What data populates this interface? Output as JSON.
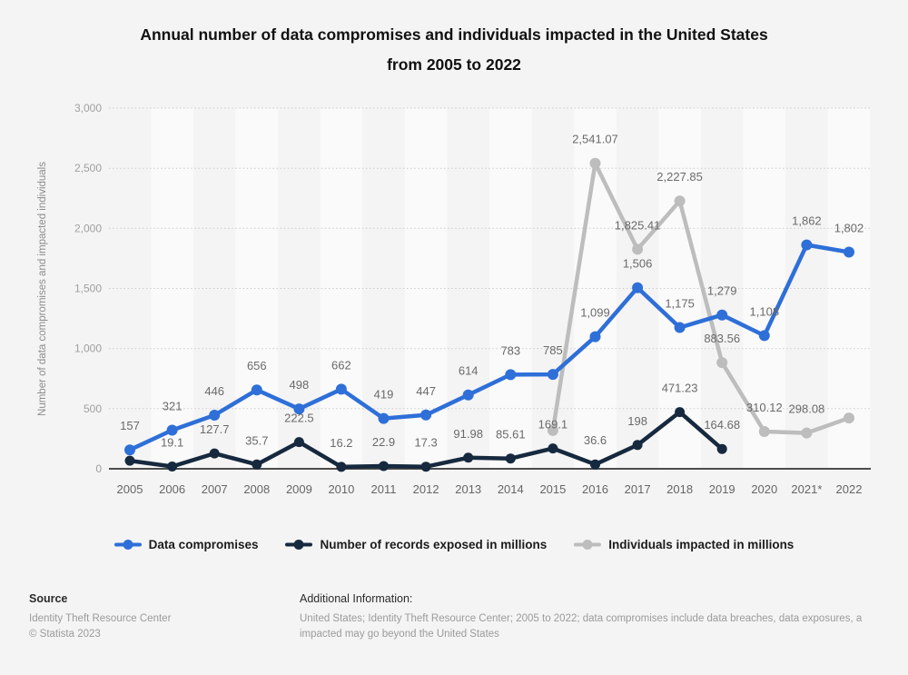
{
  "page": {
    "background": "#f4f4f5"
  },
  "header": {
    "title_line1": "Annual number of data compromises and individuals impacted in the United States",
    "title_line2": "from 2005 to 2022"
  },
  "chart_data": {
    "type": "line",
    "title": "Annual number of data compromises and individuals impacted in the United States from 2005 to 2022",
    "xlabel": "",
    "ylabel": "Number of data compromises and impacted individuals",
    "ylim": [
      0,
      3000
    ],
    "grid": "horizontal dotted gridlines every 500; alternating light vertical year bands",
    "legend_position": "bottom",
    "y_ticks": [
      {
        "v": 0,
        "label": "0"
      },
      {
        "v": 500,
        "label": "500"
      },
      {
        "v": 1000,
        "label": "1,000"
      },
      {
        "v": 1500,
        "label": "1,500"
      },
      {
        "v": 2000,
        "label": "2,000"
      },
      {
        "v": 2500,
        "label": "2,500"
      },
      {
        "v": 3000,
        "label": "3,000"
      }
    ],
    "categories": [
      "2005",
      "2006",
      "2007",
      "2008",
      "2009",
      "2010",
      "2011",
      "2012",
      "2013",
      "2014",
      "2015",
      "2016",
      "2017",
      "2018",
      "2019",
      "2020",
      "2021*",
      "2022"
    ],
    "series": [
      {
        "name": "Data compromises",
        "color": "#2e6fd8",
        "values": [
          157,
          321,
          446,
          656,
          498,
          662,
          419,
          447,
          614,
          783,
          785,
          1099,
          1506,
          1175,
          1279,
          1108,
          1862,
          1802
        ],
        "labels": [
          "157",
          "321",
          "446",
          "656",
          "498",
          "662",
          "419",
          "447",
          "614",
          "783",
          "785",
          "1,099",
          "1,506",
          "1,175",
          "1,279",
          "1,108",
          "1,862",
          "1,802"
        ]
      },
      {
        "name": "Number of records exposed in millions",
        "color": "#16293e",
        "values": [
          66.9,
          19.1,
          127.7,
          35.7,
          222.5,
          16.2,
          22.9,
          17.3,
          91.98,
          85.61,
          169.1,
          36.6,
          198,
          471.23,
          164.68,
          null,
          null,
          null
        ],
        "labels": [
          null,
          "19.1",
          "127.7",
          "35.7",
          "222.5",
          "16.2",
          "22.9",
          "17.3",
          "91.98",
          "85.61",
          "169.1",
          "36.6",
          "198",
          "471.23",
          "164.68",
          null,
          null,
          null
        ]
      },
      {
        "name": "Individuals impacted in millions",
        "color": "#bdbdbd",
        "values": [
          null,
          null,
          null,
          null,
          null,
          null,
          null,
          null,
          null,
          null,
          318.28,
          2541.07,
          1825.41,
          2227.85,
          883.56,
          310.12,
          298.08,
          422.14
        ],
        "labels": [
          null,
          null,
          null,
          null,
          null,
          null,
          null,
          null,
          null,
          null,
          null,
          "2,541.07",
          "1,825.41",
          "2,227.85",
          "883.56",
          "310.12",
          "298.08",
          null
        ]
      }
    ]
  },
  "legend": {
    "items": [
      {
        "label": "Data compromises",
        "color": "#2e6fd8"
      },
      {
        "label": "Number of records exposed in millions",
        "color": "#16293e"
      },
      {
        "label": "Individuals impacted in millions",
        "color": "#bdbdbd"
      }
    ]
  },
  "footer": {
    "source_heading": "Source",
    "source_line1": "Identity Theft Resource Center",
    "source_line2": "© Statista 2023",
    "additional_heading": "Additional Information:",
    "additional_line1": "United States; Identity Theft Resource Center; 2005 to 2022; data compromises include data breaches, data exposures, a",
    "additional_line2": "impacted may go beyond the United States"
  }
}
